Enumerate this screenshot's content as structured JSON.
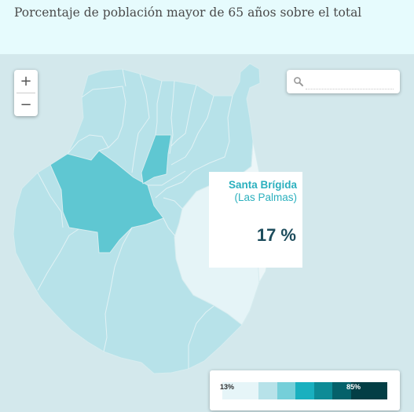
{
  "header": {
    "title": "Porcentaje de población mayor de 65 años sobre el total"
  },
  "zoom": {
    "in_label": "+",
    "out_label": "−"
  },
  "search": {
    "placeholder": "",
    "icon": "search-icon"
  },
  "tooltip": {
    "municipality": "Santa Brígida",
    "province": "(Las Palmas)",
    "value": "17 %"
  },
  "legend": {
    "min_label": "13%",
    "max_label": "85%",
    "colors": [
      "#e6f5f8",
      "#b7e2e9",
      "#75cfd9",
      "#19b0bf",
      "#0d8b96",
      "#05616a",
      "#033e45"
    ]
  },
  "map": {
    "base_color": "#b7e2e9",
    "highlight_color": "#5fc7d2",
    "selected_color": "#e5f4f7",
    "background_color": "#d3e8ec"
  }
}
